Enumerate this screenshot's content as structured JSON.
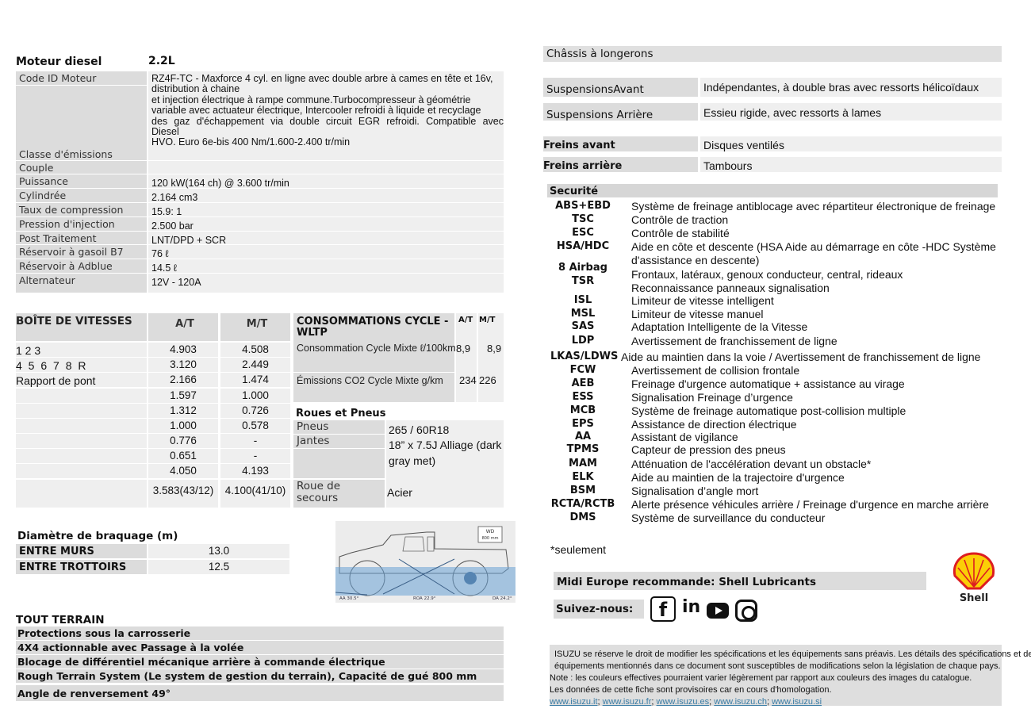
{
  "engine": {
    "title": "Moteur diesel",
    "size": "2.2L",
    "rows": [
      {
        "label": "Code ID Moteur"
      },
      {
        "label": "Classe d'émissions"
      },
      {
        "label": "Couple"
      },
      {
        "label": "Puissance",
        "value": "120 kW(164 ch) @ 3.600 tr/min"
      },
      {
        "label": "Cylindrée",
        "value": "2.164 cm3"
      },
      {
        "label": "Taux de compression",
        "value": "15.9: 1"
      },
      {
        "label": "Pression d'injection",
        "value": "2.500 bar"
      },
      {
        "label": "Post Traitement",
        "value": "LNT/DPD + SCR"
      },
      {
        "label": "Réservoir à gasoil B7",
        "value": "76 ℓ"
      },
      {
        "label": "Réservoir à Adblue",
        "value": "14.5 ℓ"
      },
      {
        "label": "Alternateur",
        "value": "12V - 120A"
      }
    ],
    "description": [
      "RZ4F-TC - Maxforce 4 cyl. en ligne avec double arbre à cames en tête et 16v,",
      "distribution à chaine",
      "et injection électrique à rampe commune.Turbocompresseur à géométrie",
      "variable avec actuateur électrique, Intercooler refroidi à liquide et recyclage",
      "des gaz d'échappement via double circuit EGR refroidi. Compatible avec",
      "Diesel",
      "HVO. Euro 6e-bis 400 Nm/1.600-2.400 tr/min"
    ]
  },
  "gearbox": {
    "title": "BOÎTE DE VITESSES",
    "col_at": "A/T",
    "col_mt": "M/T",
    "labels": [
      "1 2 3",
      "4 5 6 7 8 R",
      "Rapport de pont"
    ],
    "at": [
      "4.903",
      "3.120",
      "2.166",
      "1.597",
      "1.312",
      "1.000",
      "0.776",
      "0.651",
      "4.050",
      "3.583(43/12)"
    ],
    "mt": [
      "4.508",
      "2.449",
      "1.474",
      "1.000",
      "0.726",
      "0.578",
      "-",
      "-",
      "4.193",
      "4.100(41/10)"
    ]
  },
  "consumption": {
    "title": "CONSOMMATIONS CYCLE - WLTP",
    "col_at": "A/T",
    "col_mt": "M/T",
    "rows": [
      {
        "label": "Consommation Cycle Mixte ℓ/100km",
        "at": "8,9",
        "mt": "8,9"
      },
      {
        "label": "Émissions CO2 Cycle Mixte g/km",
        "at": "234",
        "mt": "226"
      }
    ]
  },
  "wheels": {
    "title": "Roues et Pneus",
    "rows": [
      {
        "label": "Pneus",
        "value": "265 / 60R18"
      },
      {
        "label": "Jantes",
        "value": "18” x 7.5J Alliage (dark gray met)"
      },
      {
        "label": "Roue de secours",
        "value": "Acier"
      }
    ]
  },
  "turning": {
    "title": "Diamètre de braquage (m)",
    "rows": [
      {
        "label": "ENTRE MURS",
        "value": "13.0"
      },
      {
        "label": "ENTRE TROTTOIRS",
        "value": "12.5"
      }
    ]
  },
  "vehicle_diagram": {
    "wd_label": "WD",
    "wd_value": "800 mm",
    "aa": "AA 30.5°",
    "roa": "ROA 22.9°",
    "da": "DA 24.2°"
  },
  "offroad": {
    "title": "TOUT TERRAIN",
    "items": [
      "Protections sous la carrosserie",
      "4X4 actionnable avec Passage à la volée",
      "Blocage de différentiel mécanique arrière à commande électrique",
      "Rough Terrain System (Le system de gestion du terrain), Capacité de gué 800 mm",
      "Angle de renversement 49°"
    ]
  },
  "chassis": {
    "title": "Châssis à longerons",
    "suspension_front_label": "SuspensionsAvant",
    "suspension_front": "Indépendantes, à double bras avec ressorts hélicoïdaux",
    "suspension_rear_label": "Suspensions Arrière",
    "suspension_rear": "Essieu rigide, avec ressorts à lames",
    "brakes_front_label": "Freins avant",
    "brakes_front": "Disques ventilés",
    "brakes_rear_label": "Freins arrière",
    "brakes_rear": "Tambours"
  },
  "security": {
    "title": "Securité",
    "items": [
      {
        "key": "ABS+EBD",
        "desc": "Système de freinage antiblocage avec répartiteur électronique de freinage"
      },
      {
        "key": "TSC",
        "desc": "Contrôle de traction"
      },
      {
        "key": "ESC",
        "desc": "Contrôle de stabilité"
      },
      {
        "key": "HSA/HDC",
        "desc": "Aide en côte et descente (HSA Aide au démarrage en côte -HDC Système d'assistance en descente)"
      },
      {
        "key": "8 Airbag",
        "desc": "Frontaux, latéraux, genoux conducteur, central, rideaux"
      },
      {
        "key": "TSR",
        "desc": "Reconnaissance panneaux signalisation"
      },
      {
        "key": "ISL",
        "desc": "Limiteur de vitesse intelligent"
      },
      {
        "key": "MSL",
        "desc": "Limiteur de vitesse manuel"
      },
      {
        "key": "SAS",
        "desc": "Adaptation Intelligente de la Vitesse"
      },
      {
        "key": "LDP",
        "desc": "Avertissement de franchissement de ligne"
      },
      {
        "key": "LKAS/LDWS",
        "desc": "Aide au maintien dans la voie / Avertissement de franchissement de ligne"
      },
      {
        "key": "FCW",
        "desc": "Avertissement de collision frontale"
      },
      {
        "key": "AEB",
        "desc": "Freinage d'urgence automatique + assistance au virage"
      },
      {
        "key": "ESS",
        "desc": "Signalisation Freinage d’urgence"
      },
      {
        "key": "MCB",
        "desc": "Système de freinage automatique post-collision multiple"
      },
      {
        "key": "EPS",
        "desc": "Assistance de direction électrique"
      },
      {
        "key": "AA",
        "desc": "Assistant de vigilance"
      },
      {
        "key": "TPMS",
        "desc": "Capteur de pression des pneus"
      },
      {
        "key": "MAM",
        "desc": "Atténuation de l'accélération devant un obstacle*"
      },
      {
        "key": "ELK",
        "desc": "Aide au maintien de la trajectoire d'urgence"
      },
      {
        "key": "BSM",
        "desc": "Signalisation d’angle mort"
      },
      {
        "key": "RCTA/RCTB",
        "desc": "Alerte présence véhicules arrière / Freinage d'urgence en marche arrière"
      },
      {
        "key": "DMS",
        "desc": "Système de surveillance du conducteur"
      }
    ],
    "footnote": "*seulement"
  },
  "promo": {
    "recommend": "Midi Europe recommande: Shell Lubricants",
    "follow": "Suivez-nous:",
    "shell_logo": "Shell",
    "social": [
      "facebook-icon",
      "linkedin-icon",
      "youtube-icon",
      "instagram-icon"
    ]
  },
  "disclaimer": {
    "lines": [
      "ISUZU se réserve le droit de modifier les spécifications et les équipements sans préavis. Les détails des spécifications et des",
      "équipements mentionnés dans ce document sont susceptibles de modifications selon la législation de chaque pays.",
      "Note : les couleurs effectives pourraient varier légèrement par rapport aux couleurs des images du catalogue.",
      "Les données de cette fiche sont provisoires car en cours d'homologation."
    ],
    "links": [
      "www.isuzu.it",
      "www.isuzu.fr",
      "www.isuzu.es",
      "www.isuzu.ch",
      "www.isuzu.si"
    ]
  },
  "colors": {
    "label_bg": "#dcdcdc",
    "value_bg": "#efefef",
    "link": "#3a7ca5",
    "shell_red": "#dd1d21",
    "shell_yellow": "#fbce07"
  }
}
